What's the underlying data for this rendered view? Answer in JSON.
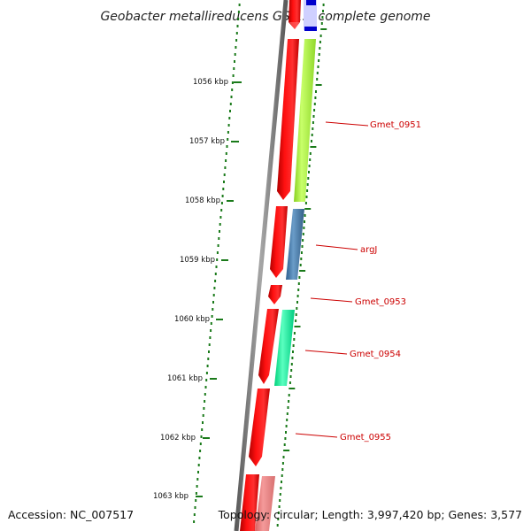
{
  "title": "Geobacter metallireducens GS-15, complete genome",
  "footer": {
    "accession": "Accession: NC_007517",
    "topology": "Topology: circular; Length: 3,997,420 bp; Genes: 3,577"
  },
  "ruler": {
    "tick_labels": [
      "1056 kbp",
      "1057 kbp",
      "1058 kbp",
      "1059 kbp",
      "1060 kbp",
      "1061 kbp",
      "1062 kbp",
      "1063 kbp"
    ]
  },
  "gene_labels": [
    "Gmet_0951",
    "argJ",
    "Gmet_0953",
    "Gmet_0954",
    "Gmet_0955"
  ],
  "colors": {
    "backbone": "#7a7a7a",
    "forward_cds": "#ff0000",
    "pale_red": "#f08080",
    "lime": "#aaf03c",
    "steel_blue": "#4682b4",
    "spring_green": "#00ff99",
    "blue": "#0000cc",
    "lavender": "#c8c8ff",
    "tick_green": "#1a7a1a",
    "label_red": "#cc0000"
  }
}
